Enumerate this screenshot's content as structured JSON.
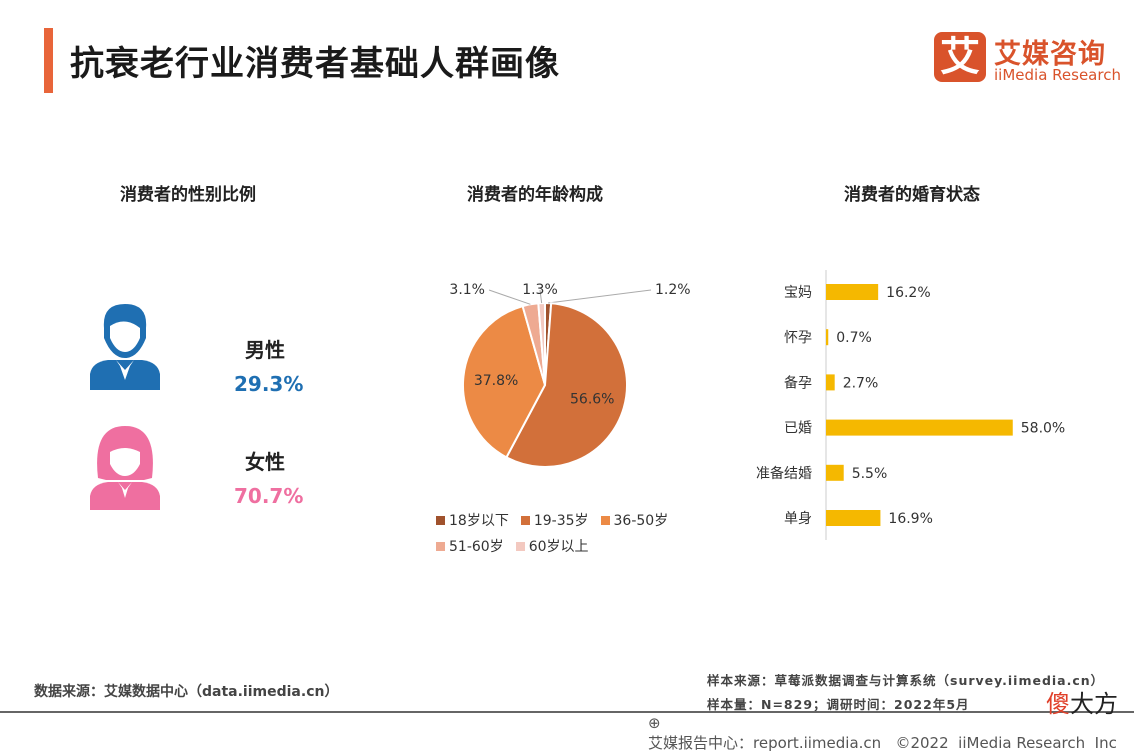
{
  "header": {
    "title": "抗衰老行业消费者基础人群画像",
    "logo_mark": "艾",
    "logo_cn": "艾媒咨询",
    "logo_en": "iiMedia Research",
    "accent": "#e8653a"
  },
  "gender": {
    "title": "消费者的性别比例",
    "male_label": "男性",
    "male_value": "29.3%",
    "female_label": "女性",
    "female_value": "70.7%",
    "male_color": "#1f6fb2",
    "female_color": "#ef6fa0"
  },
  "chart_data": [
    {
      "type": "pie",
      "title": "消费者的年龄构成",
      "categories": [
        "18岁以下",
        "19-35岁",
        "36-50岁",
        "51-60岁",
        "60岁以上"
      ],
      "values": [
        1.2,
        56.6,
        37.8,
        3.1,
        1.3
      ],
      "labels": [
        "1.2%",
        "56.6%",
        "37.8%",
        "3.1%",
        "1.3%"
      ],
      "colors": [
        "#a0522d",
        "#d2703a",
        "#ec8a45",
        "#eeaa92",
        "#f3c9c0"
      ],
      "legend": "bottom"
    },
    {
      "type": "bar",
      "orientation": "horizontal",
      "title": "消费者的婚育状态",
      "categories": [
        "宝妈",
        "怀孕",
        "备孕",
        "已婚",
        "准备结婚",
        "单身"
      ],
      "values": [
        16.2,
        0.7,
        2.7,
        58.0,
        5.5,
        16.9
      ],
      "labels": [
        "16.2%",
        "0.7%",
        "2.7%",
        "58.0%",
        "5.5%",
        "16.9%"
      ],
      "color": "#f5b800"
    }
  ],
  "footer": {
    "source": "数据来源：艾媒数据中心（data.iimedia.cn）",
    "sample_source": "样本来源：草莓派数据调查与计算系统（survey.iimedia.cn）",
    "sample_size": "样本量：N=829；调研时间：2022年5月",
    "bottom": "艾媒报告中心：report.iimedia.cn   ©2022  iiMedia Research  Inc",
    "watermark_a": "傻",
    "watermark_b": "大方"
  }
}
